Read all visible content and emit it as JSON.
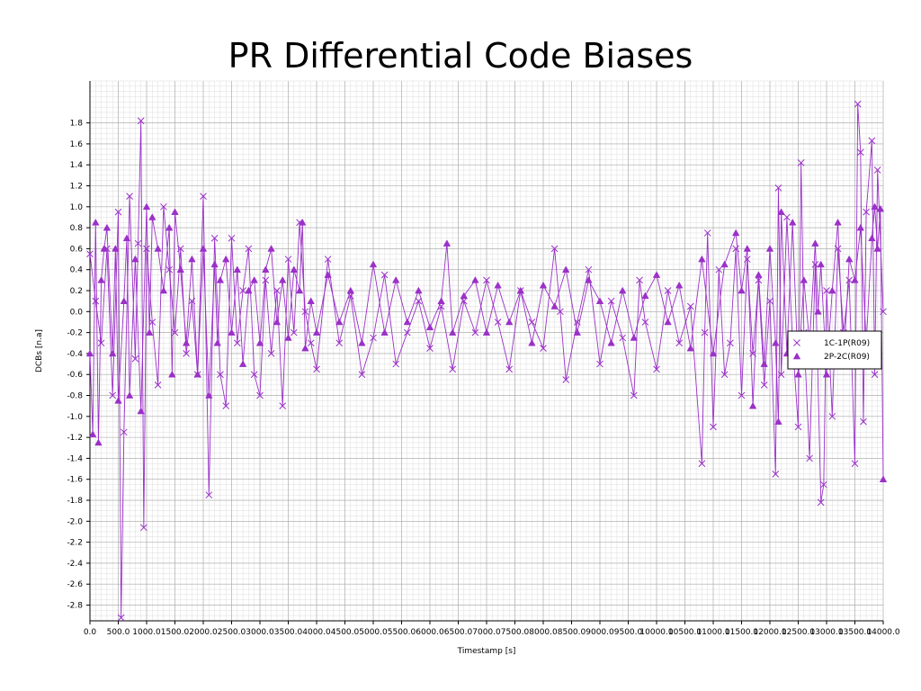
{
  "chart_data": {
    "type": "line",
    "title": "PR Differential Code Biases",
    "xlabel": "Timestamp [s]",
    "ylabel": "DCBs [n.a]",
    "xlim": [
      0,
      14000
    ],
    "ylim": [
      -2.95,
      2.2
    ],
    "x_ticks": [
      0,
      500,
      1000,
      1500,
      2000,
      2500,
      3000,
      3500,
      4000,
      4500,
      5000,
      5500,
      6000,
      6500,
      7000,
      7500,
      8000,
      8500,
      9000,
      9500,
      10000,
      10500,
      11000,
      11500,
      12000,
      12500,
      13000,
      13500,
      14000
    ],
    "x_tick_labels": [
      "0.0",
      "500.0",
      "1000.0",
      "1500.0",
      "2000.0",
      "2500.0",
      "3000.0",
      "3500.0",
      "4000.0",
      "4500.0",
      "5000.0",
      "5500.0",
      "6000.0",
      "6500.0",
      "7000.0",
      "7500.0",
      "8000.0",
      "8500.0",
      "9000.0",
      "9500.0",
      "10000.0",
      "10500.0",
      "11000.0",
      "11500.0",
      "12000.0",
      "12500.0",
      "13000.0",
      "13500.0",
      "14000.0"
    ],
    "y_ticks": [
      -2.8,
      -2.6,
      -2.4,
      -2.2,
      -2.0,
      -1.8,
      -1.6,
      -1.4,
      -1.2,
      -1.0,
      -0.8,
      -0.6,
      -0.4,
      -0.2,
      0.0,
      0.2,
      0.4,
      0.6,
      0.8,
      1.0,
      1.2,
      1.4,
      1.6,
      1.8
    ],
    "y_tick_labels": [
      "-2.8",
      "-2.6",
      "-2.4",
      "-2.2",
      "-2.0",
      "-1.8",
      "-1.6",
      "-1.4",
      "-1.2",
      "-1.0",
      "-0.8",
      "-0.6",
      "-0.4",
      "-0.2",
      "0.0",
      "0.2",
      "0.4",
      "0.6",
      "0.8",
      "1.0",
      "1.2",
      "1.4",
      "1.6",
      "1.8"
    ],
    "grid": true,
    "legend_position": "right",
    "series": [
      {
        "name": "1C-1P(R09)",
        "marker": "x",
        "color": "#9b30c8",
        "x": [
          0,
          100,
          200,
          300,
          400,
          500,
          550,
          600,
          700,
          800,
          850,
          900,
          950,
          1000,
          1100,
          1200,
          1300,
          1400,
          1500,
          1600,
          1700,
          1800,
          1900,
          2000,
          2100,
          2200,
          2300,
          2400,
          2500,
          2600,
          2700,
          2800,
          2900,
          3000,
          3100,
          3200,
          3300,
          3400,
          3500,
          3600,
          3700,
          3800,
          3900,
          4000,
          4200,
          4400,
          4600,
          4800,
          5000,
          5200,
          5400,
          5600,
          5800,
          6000,
          6200,
          6400,
          6600,
          6800,
          7000,
          7200,
          7400,
          7600,
          7800,
          8000,
          8200,
          8300,
          8400,
          8600,
          8800,
          9000,
          9200,
          9400,
          9600,
          9700,
          9800,
          10000,
          10200,
          10400,
          10600,
          10800,
          10850,
          10900,
          11000,
          11100,
          11200,
          11300,
          11400,
          11500,
          11600,
          11700,
          11800,
          11900,
          12000,
          12100,
          12150,
          12200,
          12300,
          12400,
          12500,
          12550,
          12600,
          12700,
          12800,
          12900,
          12950,
          13000,
          13100,
          13200,
          13300,
          13400,
          13500,
          13550,
          13600,
          13650,
          13700,
          13800,
          13850,
          13900,
          14000
        ],
        "y": [
          0.55,
          0.1,
          -0.3,
          0.6,
          -0.8,
          0.95,
          -2.92,
          -1.15,
          1.1,
          -0.45,
          0.65,
          1.82,
          -2.06,
          0.6,
          -0.1,
          -0.7,
          1.0,
          0.4,
          -0.2,
          0.6,
          -0.4,
          0.1,
          -0.6,
          1.1,
          -1.75,
          0.7,
          -0.6,
          -0.9,
          0.7,
          -0.3,
          0.2,
          0.6,
          -0.6,
          -0.8,
          0.3,
          -0.4,
          0.2,
          -0.9,
          0.5,
          -0.2,
          0.85,
          0.0,
          -0.3,
          -0.55,
          0.5,
          -0.3,
          0.15,
          -0.6,
          -0.25,
          0.35,
          -0.5,
          -0.2,
          0.1,
          -0.35,
          0.05,
          -0.55,
          0.1,
          -0.2,
          0.3,
          -0.1,
          -0.55,
          0.2,
          -0.1,
          -0.35,
          0.6,
          0.0,
          -0.65,
          -0.1,
          0.4,
          -0.5,
          0.1,
          -0.25,
          -0.8,
          0.3,
          -0.1,
          -0.55,
          0.2,
          -0.3,
          0.05,
          -1.45,
          -0.2,
          0.75,
          -1.1,
          0.4,
          -0.6,
          -0.3,
          0.6,
          -0.8,
          0.5,
          -0.4,
          0.3,
          -0.7,
          0.1,
          -1.55,
          1.18,
          -0.6,
          0.9,
          -0.3,
          -1.1,
          1.42,
          -0.2,
          -1.4,
          0.45,
          -1.82,
          -1.65,
          0.2,
          -1.0,
          0.6,
          -0.2,
          0.3,
          -1.45,
          1.98,
          1.52,
          -1.05,
          0.95,
          1.63,
          -0.6,
          1.35,
          0.0
        ]
      },
      {
        "name": "2P-2C(R09)",
        "marker": "triangle",
        "color": "#9b30c8",
        "x": [
          0,
          50,
          100,
          150,
          200,
          250,
          300,
          400,
          450,
          500,
          600,
          650,
          700,
          800,
          900,
          1000,
          1050,
          1100,
          1200,
          1300,
          1400,
          1450,
          1500,
          1600,
          1700,
          1800,
          1900,
          2000,
          2100,
          2200,
          2250,
          2300,
          2400,
          2500,
          2600,
          2700,
          2800,
          2900,
          3000,
          3100,
          3200,
          3300,
          3400,
          3500,
          3600,
          3700,
          3750,
          3800,
          3900,
          4000,
          4200,
          4400,
          4600,
          4800,
          5000,
          5200,
          5400,
          5600,
          5800,
          6000,
          6200,
          6300,
          6400,
          6600,
          6800,
          7000,
          7200,
          7400,
          7600,
          7800,
          8000,
          8200,
          8400,
          8600,
          8800,
          9000,
          9200,
          9400,
          9600,
          9800,
          10000,
          10200,
          10400,
          10600,
          10800,
          11000,
          11200,
          11400,
          11500,
          11600,
          11700,
          11800,
          11900,
          12000,
          12100,
          12150,
          12200,
          12300,
          12400,
          12500,
          12600,
          12700,
          12800,
          12850,
          12900,
          13000,
          13100,
          13200,
          13300,
          13400,
          13500,
          13600,
          13700,
          13800,
          13850,
          13900,
          13950,
          14000
        ],
        "y": [
          -0.4,
          -1.17,
          0.85,
          -1.25,
          0.3,
          0.6,
          0.8,
          -0.4,
          0.6,
          -0.85,
          0.1,
          0.7,
          -0.8,
          0.5,
          -0.95,
          1.0,
          -0.2,
          0.9,
          0.6,
          0.2,
          0.8,
          -0.6,
          0.95,
          0.4,
          -0.3,
          0.5,
          -0.6,
          0.6,
          -0.8,
          0.45,
          -0.3,
          0.3,
          0.5,
          -0.2,
          0.4,
          -0.5,
          0.2,
          0.3,
          -0.3,
          0.4,
          0.6,
          -0.1,
          0.3,
          -0.25,
          0.4,
          0.2,
          0.85,
          -0.35,
          0.1,
          -0.2,
          0.35,
          -0.1,
          0.2,
          -0.3,
          0.45,
          -0.2,
          0.3,
          -0.1,
          0.2,
          -0.15,
          0.1,
          0.65,
          -0.2,
          0.15,
          0.3,
          -0.2,
          0.25,
          -0.1,
          0.2,
          -0.3,
          0.25,
          0.05,
          0.4,
          -0.2,
          0.3,
          0.1,
          -0.3,
          0.2,
          -0.25,
          0.15,
          0.35,
          -0.1,
          0.25,
          -0.35,
          0.5,
          -0.4,
          0.45,
          0.75,
          0.2,
          0.6,
          -0.9,
          0.35,
          -0.5,
          0.6,
          -0.3,
          -1.05,
          0.95,
          -0.4,
          0.85,
          -0.6,
          0.3,
          -0.3,
          0.65,
          0.0,
          0.45,
          -0.6,
          0.2,
          0.85,
          -0.5,
          0.5,
          0.3,
          0.8,
          -0.3,
          0.7,
          1.0,
          0.6,
          0.98,
          -1.6
        ]
      }
    ]
  }
}
